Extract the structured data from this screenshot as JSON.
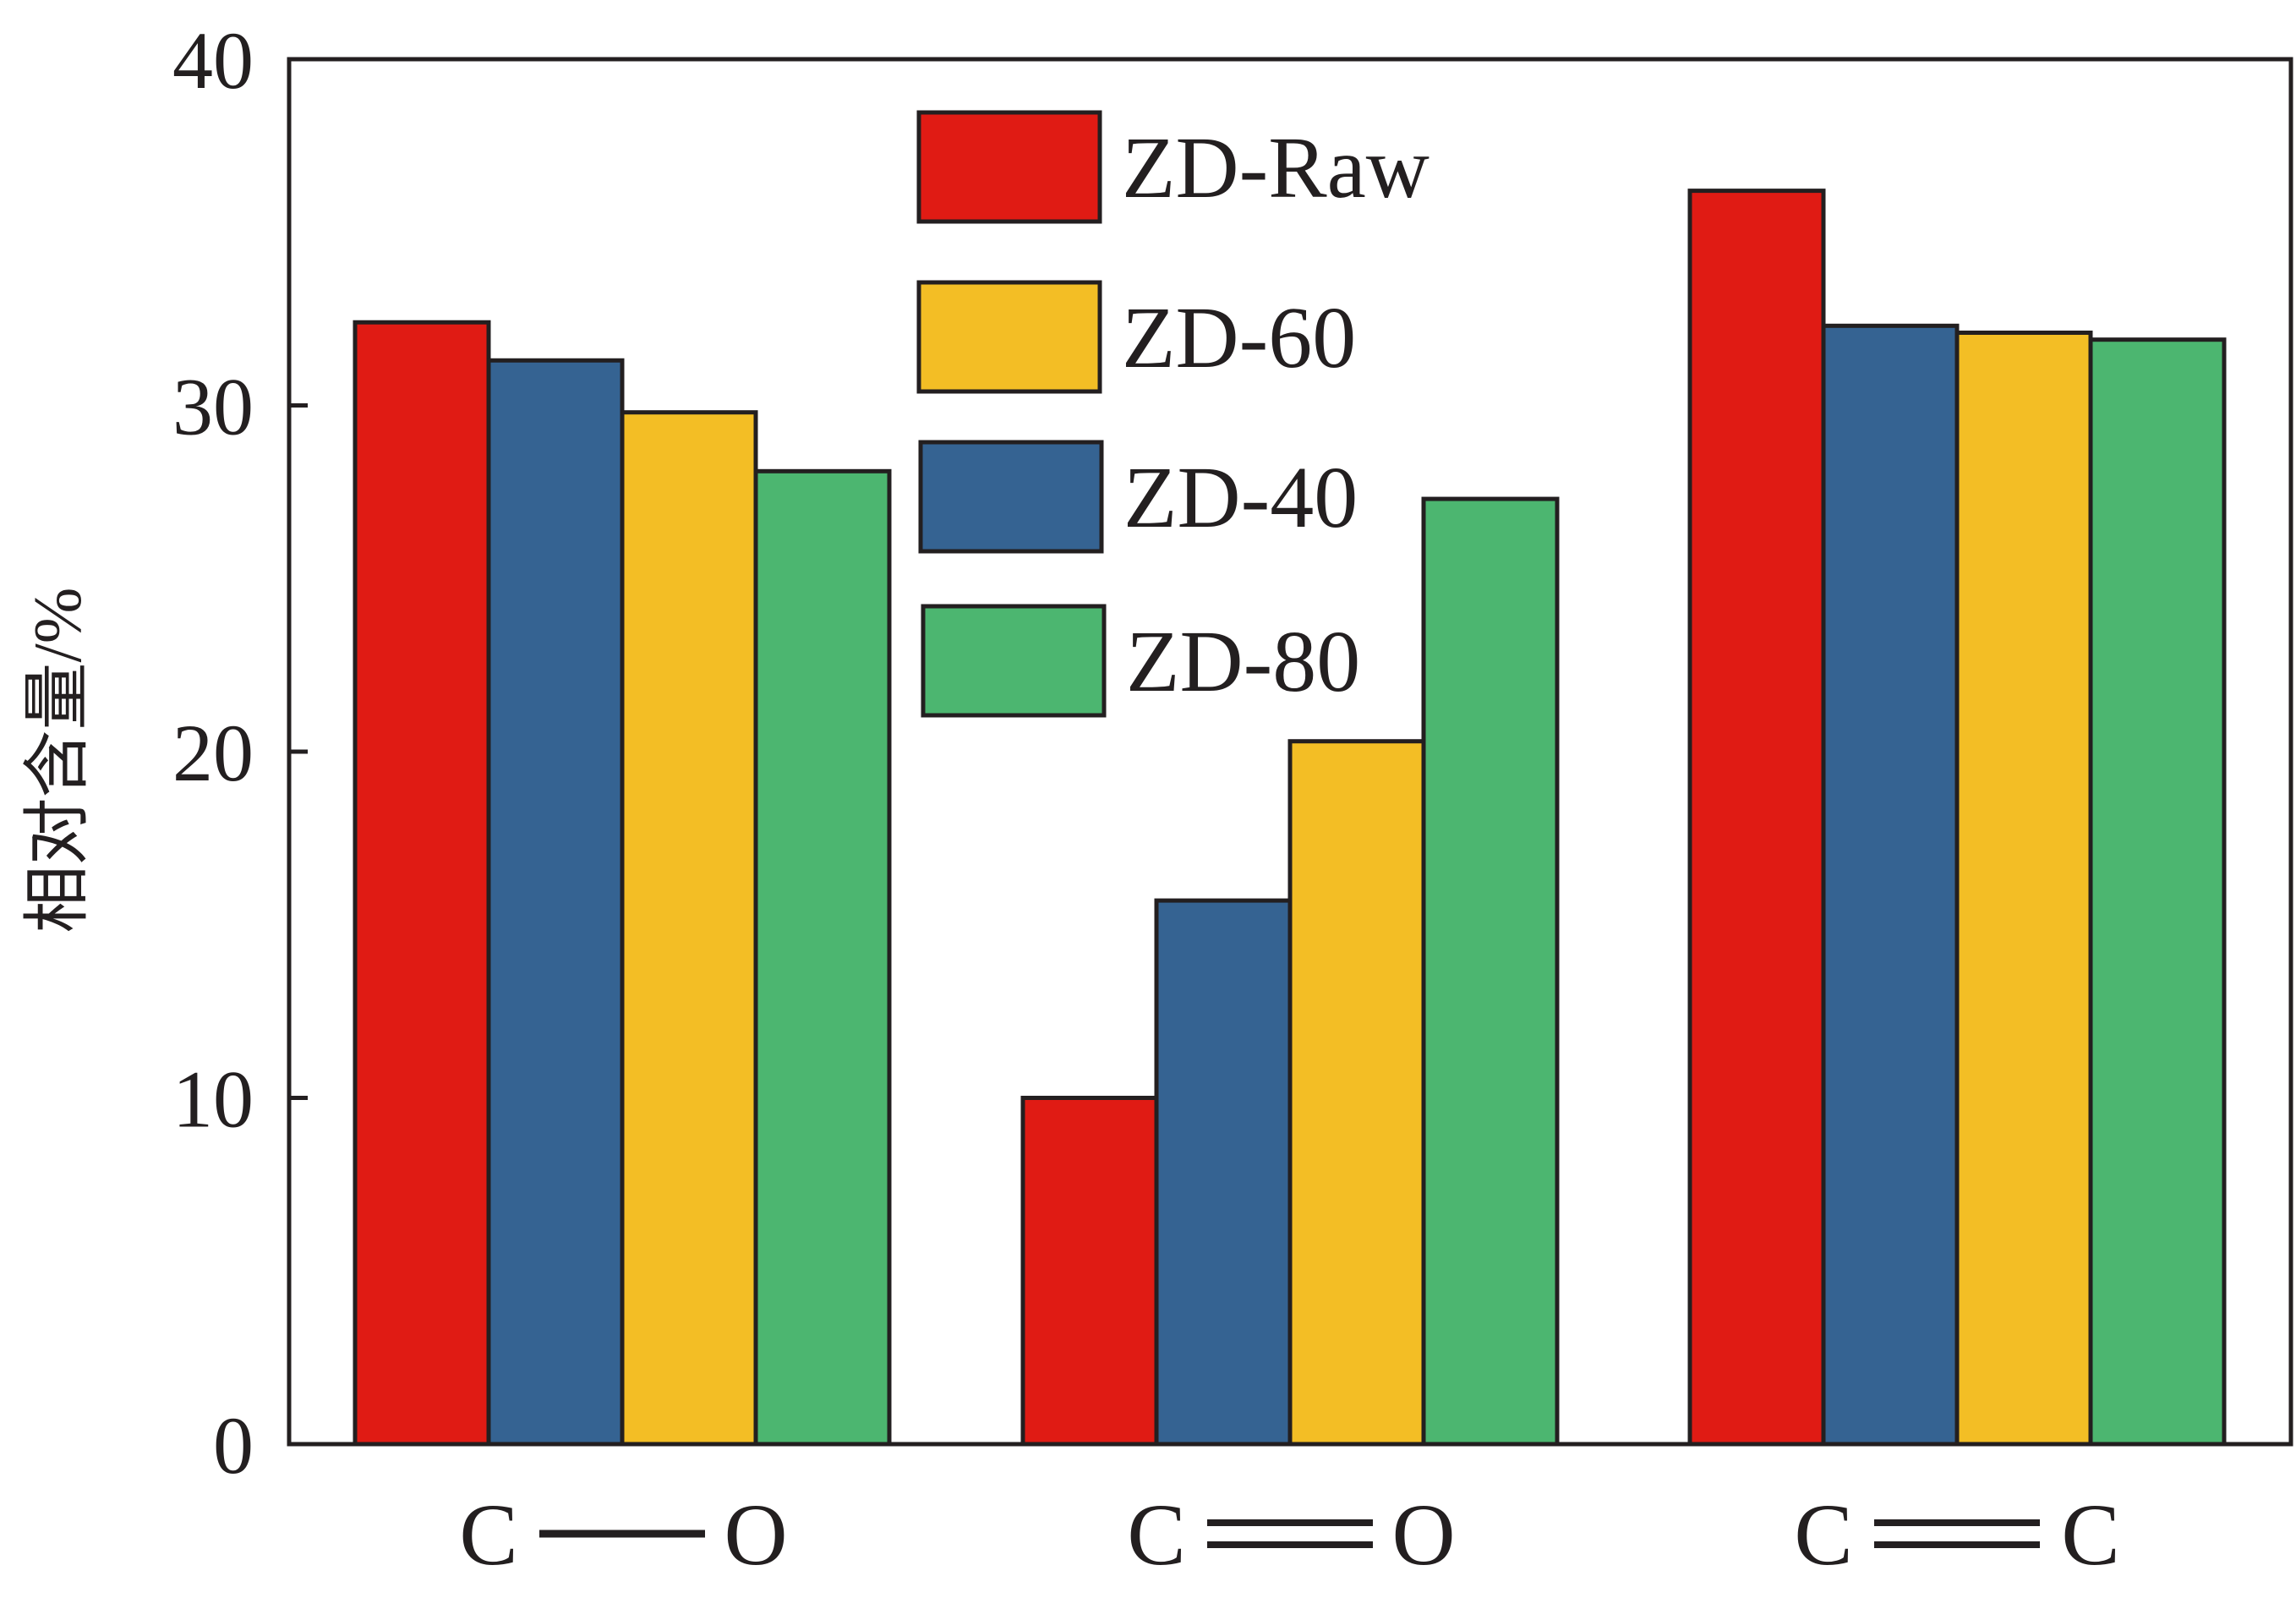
{
  "chart_data": {
    "type": "bar",
    "ylabel": "相对含量/%",
    "ylim": [
      0,
      40
    ],
    "yticks": [
      "0",
      "10",
      "20",
      "30",
      "40"
    ],
    "categories": [
      "C—O",
      "C=O",
      "C=C"
    ],
    "category_parts": [
      {
        "left": "C",
        "right": "O",
        "bond": "single"
      },
      {
        "left": "C",
        "right": "O",
        "bond": "double"
      },
      {
        "left": "C",
        "right": "C",
        "bond": "double"
      }
    ],
    "series": [
      {
        "name": "ZD-Raw",
        "color": "#e01b14",
        "values": [
          32.4,
          10.0,
          36.2
        ]
      },
      {
        "name": "ZD-40",
        "color": "#356392",
        "values": [
          31.3,
          15.7,
          32.3
        ]
      },
      {
        "name": "ZD-60",
        "color": "#f3be25",
        "values": [
          29.8,
          20.3,
          32.1
        ]
      },
      {
        "name": "ZD-80",
        "color": "#4cb670",
        "values": [
          28.1,
          27.3,
          31.9
        ]
      }
    ],
    "legend_order": [
      "ZD-Raw",
      "ZD-60",
      "ZD-40",
      "ZD-80"
    ],
    "legend_position": "top-center",
    "grid": false
  }
}
